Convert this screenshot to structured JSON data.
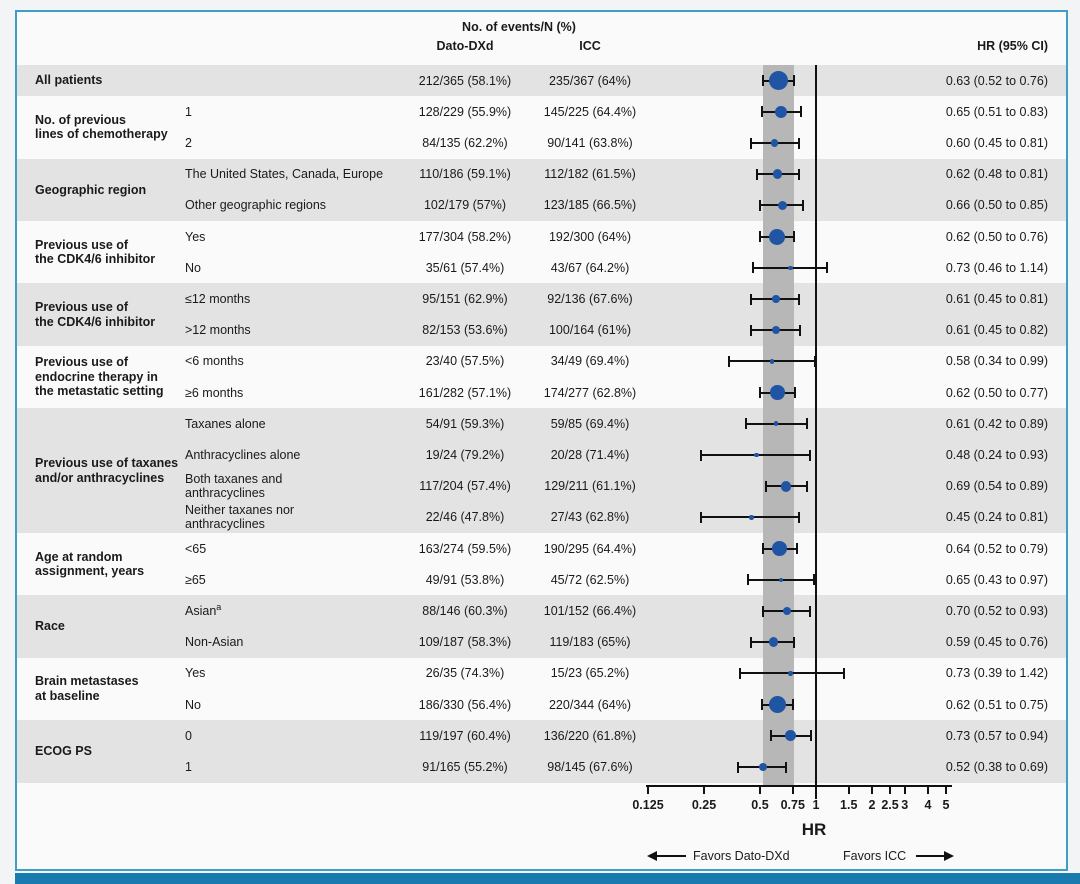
{
  "figure": {
    "header": {
      "events_title": "No. of events/N (%)",
      "col_dato": "Dato-DXd",
      "col_icc": "ICC",
      "col_hr": "HR (95% CI)"
    },
    "axis": {
      "scale": "log",
      "ticks": [
        "0.125",
        "0.25",
        "0.5",
        "0.75",
        "1",
        "1.5",
        "2",
        "2.5",
        "3",
        "4",
        "5"
      ],
      "label": "HR",
      "favors_left": "Favors Dato-DXd",
      "favors_right": "Favors ICC",
      "reference_line": 1,
      "shaded_band": [
        0.52,
        0.76
      ]
    },
    "colors": {
      "row_band": "#e3e3e3",
      "ci_band": "#b7b7b7",
      "dot_blue": "#2055a4",
      "whisker": "#111111",
      "frame_border": "#3f9ec6",
      "bottom_bar": "#187aae"
    }
  },
  "chart_data": {
    "type": "forest",
    "xlabel": "HR",
    "xlim": [
      0.125,
      5
    ],
    "groups": [
      {
        "label_lines": [
          "All patients"
        ],
        "rows": [
          {
            "sublabel_lines": [],
            "dato": "212/365 (58.1%)",
            "icc": "235/367 (64%)",
            "hr": 0.63,
            "lo": 0.52,
            "hi": 0.76,
            "hr_text": "0.63 (0.52 to 0.76)"
          }
        ]
      },
      {
        "label_lines": [
          "No. of previous",
          "lines of chemotherapy"
        ],
        "rows": [
          {
            "sublabel_lines": [
              "1"
            ],
            "dato": "128/229 (55.9%)",
            "icc": "145/225 (64.4%)",
            "hr": 0.65,
            "lo": 0.51,
            "hi": 0.83,
            "hr_text": "0.65 (0.51 to 0.83)"
          },
          {
            "sublabel_lines": [
              "2"
            ],
            "dato": "84/135 (62.2%)",
            "icc": "90/141 (63.8%)",
            "hr": 0.6,
            "lo": 0.45,
            "hi": 0.81,
            "hr_text": "0.60 (0.45 to 0.81)"
          }
        ]
      },
      {
        "label_lines": [
          "Geographic region"
        ],
        "rows": [
          {
            "sublabel_lines": [
              "The United States, Canada, Europe"
            ],
            "dato": "110/186 (59.1%)",
            "icc": "112/182 (61.5%)",
            "hr": 0.62,
            "lo": 0.48,
            "hi": 0.81,
            "hr_text": "0.62 (0.48 to 0.81)"
          },
          {
            "sublabel_lines": [
              "Other geographic regions"
            ],
            "dato": "102/179 (57%)",
            "icc": "123/185 (66.5%)",
            "hr": 0.66,
            "lo": 0.5,
            "hi": 0.85,
            "hr_text": "0.66 (0.50 to 0.85)"
          }
        ]
      },
      {
        "label_lines": [
          "Previous use of",
          "the CDK4/6 inhibitor"
        ],
        "rows": [
          {
            "sublabel_lines": [
              "Yes"
            ],
            "dato": "177/304 (58.2%)",
            "icc": "192/300 (64%)",
            "hr": 0.62,
            "lo": 0.5,
            "hi": 0.76,
            "hr_text": "0.62 (0.50 to 0.76)"
          },
          {
            "sublabel_lines": [
              "No"
            ],
            "dato": "35/61 (57.4%)",
            "icc": "43/67 (64.2%)",
            "hr": 0.73,
            "lo": 0.46,
            "hi": 1.14,
            "hr_text": "0.73 (0.46 to 1.14)"
          }
        ]
      },
      {
        "label_lines": [
          "Previous use of",
          "the CDK4/6 inhibitor"
        ],
        "rows": [
          {
            "sublabel_lines": [
              "≤12 months"
            ],
            "dato": "95/151 (62.9%)",
            "icc": "92/136 (67.6%)",
            "hr": 0.61,
            "lo": 0.45,
            "hi": 0.81,
            "hr_text": "0.61 (0.45 to 0.81)"
          },
          {
            "sublabel_lines": [
              ">12 months"
            ],
            "dato": "82/153 (53.6%)",
            "icc": "100/164 (61%)",
            "hr": 0.61,
            "lo": 0.45,
            "hi": 0.82,
            "hr_text": "0.61 (0.45 to 0.82)"
          }
        ]
      },
      {
        "label_lines": [
          "Previous use of",
          "endocrine therapy in",
          "the metastatic setting"
        ],
        "rows": [
          {
            "sublabel_lines": [
              "<6 months"
            ],
            "dato": "23/40 (57.5%)",
            "icc": "34/49 (69.4%)",
            "hr": 0.58,
            "lo": 0.34,
            "hi": 0.99,
            "hr_text": "0.58 (0.34 to 0.99)"
          },
          {
            "sublabel_lines": [
              "≥6 months"
            ],
            "dato": "161/282 (57.1%)",
            "icc": "174/277 (62.8%)",
            "hr": 0.62,
            "lo": 0.5,
            "hi": 0.77,
            "hr_text": "0.62 (0.50 to 0.77)"
          }
        ]
      },
      {
        "label_lines": [
          "Previous use of taxanes",
          "and/or anthracyclines"
        ],
        "rows": [
          {
            "sublabel_lines": [
              "Taxanes alone"
            ],
            "dato": "54/91 (59.3%)",
            "icc": "59/85 (69.4%)",
            "hr": 0.61,
            "lo": 0.42,
            "hi": 0.89,
            "hr_text": "0.61 (0.42 to 0.89)"
          },
          {
            "sublabel_lines": [
              "Anthracyclines alone"
            ],
            "dato": "19/24 (79.2%)",
            "icc": "20/28 (71.4%)",
            "hr": 0.48,
            "lo": 0.24,
            "hi": 0.93,
            "hr_text": "0.48 (0.24 to 0.93)"
          },
          {
            "sublabel_lines": [
              "Both taxanes and",
              "anthracyclines"
            ],
            "dato": "117/204 (57.4%)",
            "icc": "129/211 (61.1%)",
            "hr": 0.69,
            "lo": 0.54,
            "hi": 0.89,
            "hr_text": "0.69 (0.54 to 0.89)"
          },
          {
            "sublabel_lines": [
              "Neither taxanes nor",
              "anthracyclines"
            ],
            "dato": "22/46 (47.8%)",
            "icc": "27/43 (62.8%)",
            "hr": 0.45,
            "lo": 0.24,
            "hi": 0.81,
            "hr_text": "0.45 (0.24 to 0.81)"
          }
        ]
      },
      {
        "label_lines": [
          "Age at random",
          "assignment, years"
        ],
        "rows": [
          {
            "sublabel_lines": [
              "<65"
            ],
            "dato": "163/274 (59.5%)",
            "icc": "190/295 (64.4%)",
            "hr": 0.64,
            "lo": 0.52,
            "hi": 0.79,
            "hr_text": "0.64 (0.52 to 0.79)"
          },
          {
            "sublabel_lines": [
              "≥65"
            ],
            "dato": "49/91 (53.8%)",
            "icc": "45/72 (62.5%)",
            "hr": 0.65,
            "lo": 0.43,
            "hi": 0.97,
            "hr_text": "0.65 (0.43 to 0.97)"
          }
        ]
      },
      {
        "label_lines": [
          "Race"
        ],
        "rows": [
          {
            "sublabel_lines": [
              "Asian"
            ],
            "sup": "a",
            "dato": "88/146 (60.3%)",
            "icc": "101/152 (66.4%)",
            "hr": 0.7,
            "lo": 0.52,
            "hi": 0.93,
            "hr_text": "0.70 (0.52 to 0.93)"
          },
          {
            "sublabel_lines": [
              "Non-Asian"
            ],
            "dato": "109/187 (58.3%)",
            "icc": "119/183 (65%)",
            "hr": 0.59,
            "lo": 0.45,
            "hi": 0.76,
            "hr_text": "0.59 (0.45 to 0.76)"
          }
        ]
      },
      {
        "label_lines": [
          "Brain metastases",
          "at baseline"
        ],
        "rows": [
          {
            "sublabel_lines": [
              "Yes"
            ],
            "dato": "26/35 (74.3%)",
            "icc": "15/23 (65.2%)",
            "hr": 0.73,
            "lo": 0.39,
            "hi": 1.42,
            "hr_text": "0.73 (0.39 to 1.42)"
          },
          {
            "sublabel_lines": [
              "No"
            ],
            "dato": "186/330 (56.4%)",
            "icc": "220/344 (64%)",
            "hr": 0.62,
            "lo": 0.51,
            "hi": 0.75,
            "hr_text": "0.62 (0.51 to 0.75)"
          }
        ]
      },
      {
        "label_lines": [
          "ECOG PS"
        ],
        "rows": [
          {
            "sublabel_lines": [
              "0"
            ],
            "dato": "119/197 (60.4%)",
            "icc": "136/220 (61.8%)",
            "hr": 0.73,
            "lo": 0.57,
            "hi": 0.94,
            "hr_text": "0.73 (0.57 to 0.94)"
          },
          {
            "sublabel_lines": [
              "1"
            ],
            "dato": "91/165 (55.2%)",
            "icc": "98/145 (67.6%)",
            "hr": 0.52,
            "lo": 0.38,
            "hi": 0.69,
            "hr_text": "0.52 (0.38 to 0.69)"
          }
        ]
      }
    ]
  }
}
